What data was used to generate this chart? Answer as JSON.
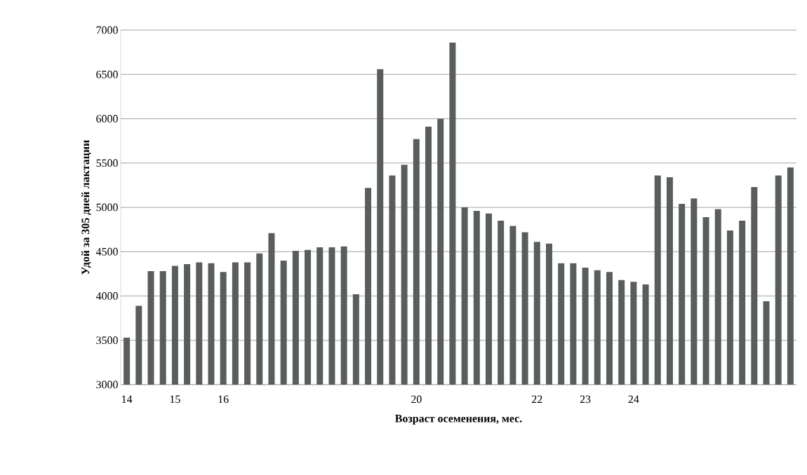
{
  "chart_data": {
    "type": "bar",
    "xlabel": "Возраст осеменения, мес.",
    "ylabel": "Удой за 305 дней лактации",
    "categories": [
      "14",
      null,
      null,
      null,
      "15",
      null,
      null,
      null,
      "16",
      null,
      null,
      null,
      null,
      null,
      null,
      null,
      null,
      null,
      null,
      null,
      null,
      null,
      null,
      null,
      "20",
      null,
      null,
      null,
      null,
      null,
      null,
      null,
      null,
      null,
      "22",
      null,
      null,
      null,
      "23",
      null,
      null,
      null,
      "24",
      null,
      null,
      null,
      null,
      null,
      null,
      null,
      null,
      null,
      null,
      null,
      null,
      null
    ],
    "values": [
      3530,
      3890,
      4280,
      4280,
      4340,
      4360,
      4380,
      4370,
      4270,
      4380,
      4380,
      4480,
      4710,
      4400,
      4510,
      4520,
      4550,
      4550,
      4560,
      4020,
      5220,
      6560,
      5360,
      5480,
      5770,
      5910,
      6000,
      6860,
      5000,
      4960,
      4930,
      4850,
      4790,
      4720,
      4610,
      4590,
      4370,
      4370,
      4320,
      4290,
      4270,
      4180,
      4160,
      4130,
      5360,
      5340,
      5040,
      5100,
      4890,
      4980,
      4740,
      4850,
      5230,
      3940,
      5360,
      5450
    ],
    "color": "#595d5e",
    "ylim": [
      3000,
      7000
    ],
    "yticks": [
      3000,
      3500,
      4000,
      4500,
      5000,
      5500,
      6000,
      6500,
      7000
    ],
    "grid": "y"
  }
}
